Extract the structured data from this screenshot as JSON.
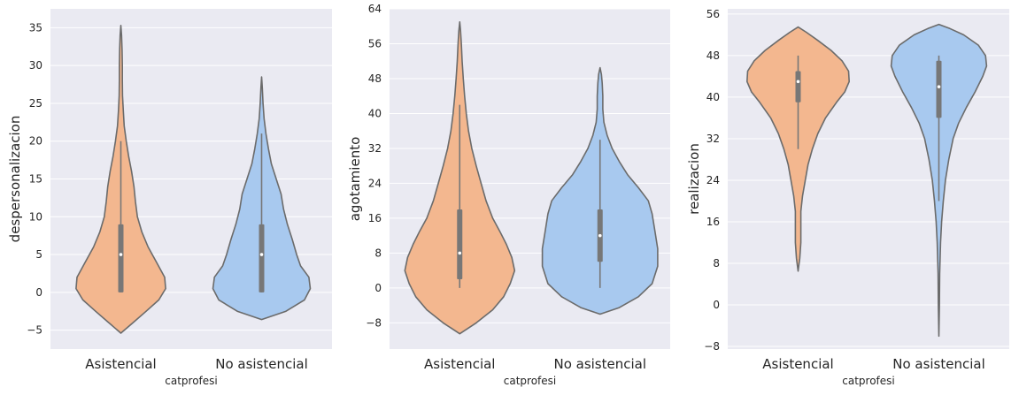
{
  "colors": {
    "background": "#eaeaf2",
    "grid": "#ffffff",
    "outline": "#6b6b6b",
    "box": "#777777",
    "median": "#ffffff",
    "asistencial": "#f3b78f",
    "no_asistencial": "#a8c9ef"
  },
  "chart_data": [
    {
      "type": "violin",
      "xlabel": "catprofesi",
      "ylabel": "despersonalizacion",
      "categories": [
        "Asistencial",
        "No asistencial"
      ],
      "ylim": [
        -7.5,
        37.5
      ],
      "yticks": [
        -5,
        0,
        5,
        10,
        15,
        20,
        25,
        30,
        35
      ],
      "grid": true,
      "series": [
        {
          "category": "Asistencial",
          "kde_min": -5.4,
          "kde_max": 35.3,
          "whisker_low": 0,
          "q1": 0,
          "median": 5,
          "q3": 9,
          "whisker_high": 20,
          "profile": [
            [
              -5.4,
              0.0
            ],
            [
              -4,
              0.25
            ],
            [
              -2.5,
              0.52
            ],
            [
              -1,
              0.78
            ],
            [
              0.5,
              0.92
            ],
            [
              2,
              0.9
            ],
            [
              4,
              0.73
            ],
            [
              6,
              0.56
            ],
            [
              8,
              0.43
            ],
            [
              10,
              0.34
            ],
            [
              12,
              0.3
            ],
            [
              14,
              0.27
            ],
            [
              16,
              0.22
            ],
            [
              18,
              0.16
            ],
            [
              20,
              0.11
            ],
            [
              22,
              0.07
            ],
            [
              24,
              0.05
            ],
            [
              26,
              0.035
            ],
            [
              28,
              0.03
            ],
            [
              30,
              0.03
            ],
            [
              32,
              0.025
            ],
            [
              34,
              0.015
            ],
            [
              35.3,
              0.0
            ]
          ]
        },
        {
          "category": "No asistencial",
          "kde_min": -3.6,
          "kde_max": 28.5,
          "whisker_low": 0,
          "q1": 0,
          "median": 5,
          "q3": 9,
          "whisker_high": 21,
          "profile": [
            [
              -3.6,
              0.0
            ],
            [
              -2.5,
              0.5
            ],
            [
              -1,
              0.88
            ],
            [
              0.5,
              1.0
            ],
            [
              2,
              0.97
            ],
            [
              3.5,
              0.8
            ],
            [
              5,
              0.72
            ],
            [
              7,
              0.63
            ],
            [
              9,
              0.53
            ],
            [
              11,
              0.45
            ],
            [
              13,
              0.4
            ],
            [
              15,
              0.3
            ],
            [
              17,
              0.2
            ],
            [
              19,
              0.14
            ],
            [
              21,
              0.09
            ],
            [
              23,
              0.05
            ],
            [
              25,
              0.03
            ],
            [
              27,
              0.015
            ],
            [
              28.5,
              0.0
            ]
          ]
        }
      ]
    },
    {
      "type": "violin",
      "xlabel": "catprofesi",
      "ylabel": "agotamiento",
      "categories": [
        "Asistencial",
        "No asistencial"
      ],
      "ylim": [
        -14,
        64
      ],
      "yticks": [
        -8,
        0,
        8,
        16,
        24,
        32,
        40,
        48,
        56,
        64
      ],
      "grid": true,
      "series": [
        {
          "category": "Asistencial",
          "kde_min": -10.5,
          "kde_max": 61,
          "whisker_low": 0,
          "q1": 2,
          "median": 8,
          "q3": 18,
          "whisker_high": 42,
          "profile": [
            [
              -10.5,
              0.0
            ],
            [
              -8,
              0.3
            ],
            [
              -5,
              0.6
            ],
            [
              -2,
              0.8
            ],
            [
              1,
              0.92
            ],
            [
              4,
              1.0
            ],
            [
              7,
              0.95
            ],
            [
              10,
              0.85
            ],
            [
              13,
              0.73
            ],
            [
              16,
              0.6
            ],
            [
              20,
              0.48
            ],
            [
              24,
              0.39
            ],
            [
              28,
              0.3
            ],
            [
              32,
              0.22
            ],
            [
              36,
              0.16
            ],
            [
              40,
              0.12
            ],
            [
              44,
              0.09
            ],
            [
              48,
              0.065
            ],
            [
              52,
              0.045
            ],
            [
              56,
              0.03
            ],
            [
              59,
              0.015
            ],
            [
              61,
              0.0
            ]
          ]
        },
        {
          "category": "No asistencial",
          "kde_min": -6,
          "kde_max": 50.5,
          "whisker_low": 0,
          "q1": 6,
          "median": 12,
          "q3": 18,
          "whisker_high": 34,
          "profile": [
            [
              -6,
              0.0
            ],
            [
              -4.5,
              0.35
            ],
            [
              -2,
              0.7
            ],
            [
              1,
              0.95
            ],
            [
              5,
              1.05
            ],
            [
              9,
              1.05
            ],
            [
              13,
              1.0
            ],
            [
              17,
              0.95
            ],
            [
              20,
              0.88
            ],
            [
              23,
              0.7
            ],
            [
              26,
              0.5
            ],
            [
              29,
              0.35
            ],
            [
              32,
              0.22
            ],
            [
              35,
              0.13
            ],
            [
              38,
              0.07
            ],
            [
              41,
              0.05
            ],
            [
              44,
              0.05
            ],
            [
              47,
              0.04
            ],
            [
              49,
              0.025
            ],
            [
              50.5,
              0.0
            ]
          ]
        }
      ]
    },
    {
      "type": "violin",
      "xlabel": "catprofesi",
      "ylabel": "realizacion",
      "categories": [
        "Asistencial",
        "No asistencial"
      ],
      "ylim": [
        -8.5,
        57
      ],
      "yticks": [
        -8,
        0,
        8,
        16,
        24,
        32,
        40,
        48,
        56
      ],
      "grid": true,
      "series": [
        {
          "category": "Asistencial",
          "kde_min": 6.5,
          "kde_max": 53.5,
          "whisker_low": 30,
          "q1": 39,
          "median": 43,
          "q3": 45,
          "whisker_high": 48,
          "profile": [
            [
              6.5,
              0.0
            ],
            [
              9,
              0.03
            ],
            [
              12,
              0.05
            ],
            [
              15,
              0.05
            ],
            [
              18,
              0.05
            ],
            [
              21,
              0.08
            ],
            [
              24,
              0.13
            ],
            [
              27,
              0.18
            ],
            [
              30,
              0.26
            ],
            [
              33,
              0.36
            ],
            [
              36,
              0.5
            ],
            [
              39,
              0.7
            ],
            [
              41,
              0.85
            ],
            [
              43,
              0.93
            ],
            [
              45,
              0.92
            ],
            [
              47,
              0.8
            ],
            [
              49,
              0.6
            ],
            [
              51,
              0.35
            ],
            [
              52.5,
              0.15
            ],
            [
              53.5,
              0.0
            ]
          ]
        },
        {
          "category": "No asistencial",
          "kde_min": -6,
          "kde_max": 54,
          "whisker_low": 20,
          "q1": 36,
          "median": 42,
          "q3": 47,
          "whisker_high": 48,
          "profile": [
            [
              -6,
              0.0
            ],
            [
              0,
              0.01
            ],
            [
              6,
              0.015
            ],
            [
              12,
              0.03
            ],
            [
              16,
              0.05
            ],
            [
              20,
              0.08
            ],
            [
              24,
              0.12
            ],
            [
              28,
              0.18
            ],
            [
              32,
              0.26
            ],
            [
              35,
              0.36
            ],
            [
              38,
              0.5
            ],
            [
              41,
              0.66
            ],
            [
              44,
              0.8
            ],
            [
              46,
              0.87
            ],
            [
              48,
              0.85
            ],
            [
              50,
              0.72
            ],
            [
              52,
              0.45
            ],
            [
              53.2,
              0.2
            ],
            [
              54,
              0.0
            ]
          ]
        }
      ]
    }
  ]
}
